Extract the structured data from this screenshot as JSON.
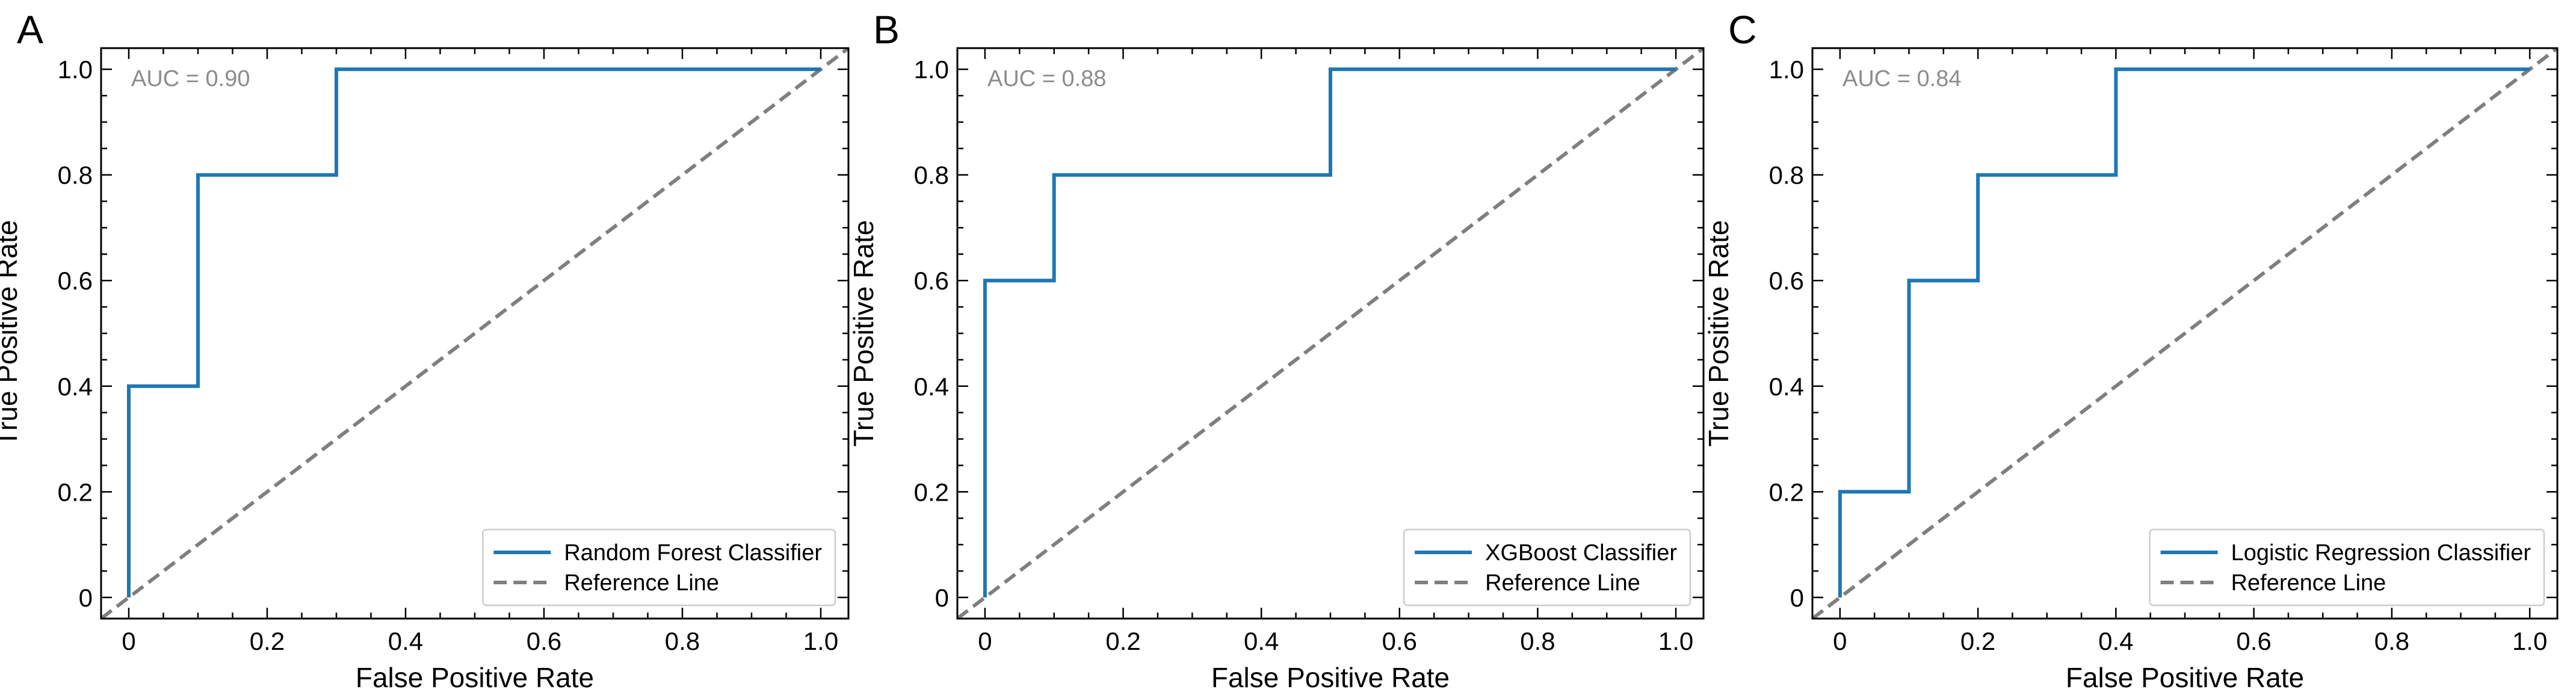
{
  "chart_data": [
    {
      "panel": "A",
      "type": "line",
      "xlabel": "False Positive Rate",
      "ylabel": "True Positive Rate",
      "xlim": [
        -0.04,
        1.04
      ],
      "ylim": [
        -0.04,
        1.04
      ],
      "x_ticks": [
        0,
        0.2,
        0.4,
        0.6,
        0.8,
        1.0
      ],
      "x_tick_labels": [
        "0",
        "0.2",
        "0.4",
        "0.6",
        "0.8",
        "1.0"
      ],
      "y_ticks": [
        0,
        0.2,
        0.4,
        0.6,
        0.8,
        1.0
      ],
      "y_tick_labels": [
        "0",
        "0.2",
        "0.4",
        "0.6",
        "0.8",
        "1.0"
      ],
      "annotation": "AUC = 0.90",
      "legend_placement": "lower-right",
      "series": [
        {
          "name": "Random Forest Classifier",
          "color": "#1f77b4",
          "dash": "solid",
          "x": [
            0,
            0,
            0.1,
            0.1,
            0.3,
            0.3,
            1.0
          ],
          "y": [
            0,
            0.4,
            0.4,
            0.8,
            0.8,
            1.0,
            1.0
          ]
        },
        {
          "name": "Reference Line",
          "color": "#7f7f7f",
          "dash": "dashed",
          "x": [
            -0.04,
            1.04
          ],
          "y": [
            -0.04,
            1.04
          ]
        }
      ]
    },
    {
      "panel": "B",
      "type": "line",
      "xlabel": "False Positive Rate",
      "ylabel": "True Positive Rate",
      "xlim": [
        -0.04,
        1.04
      ],
      "ylim": [
        -0.04,
        1.04
      ],
      "x_ticks": [
        0,
        0.2,
        0.4,
        0.6,
        0.8,
        1.0
      ],
      "x_tick_labels": [
        "0",
        "0.2",
        "0.4",
        "0.6",
        "0.8",
        "1.0"
      ],
      "y_ticks": [
        0,
        0.2,
        0.4,
        0.6,
        0.8,
        1.0
      ],
      "y_tick_labels": [
        "0",
        "0.2",
        "0.4",
        "0.6",
        "0.8",
        "1.0"
      ],
      "annotation": "AUC = 0.88",
      "legend_placement": "lower-right",
      "series": [
        {
          "name": "XGBoost Classifier",
          "color": "#1f77b4",
          "dash": "solid",
          "x": [
            0,
            0,
            0.1,
            0.1,
            0.5,
            0.5,
            1.0
          ],
          "y": [
            0,
            0.6,
            0.6,
            0.8,
            0.8,
            1.0,
            1.0
          ]
        },
        {
          "name": "Reference Line",
          "color": "#7f7f7f",
          "dash": "dashed",
          "x": [
            -0.04,
            1.04
          ],
          "y": [
            -0.04,
            1.04
          ]
        }
      ]
    },
    {
      "panel": "C",
      "type": "line",
      "xlabel": "False Positive Rate",
      "ylabel": "True Positive Rate",
      "xlim": [
        -0.04,
        1.04
      ],
      "ylim": [
        -0.04,
        1.04
      ],
      "x_ticks": [
        0,
        0.2,
        0.4,
        0.6,
        0.8,
        1.0
      ],
      "x_tick_labels": [
        "0",
        "0.2",
        "0.4",
        "0.6",
        "0.8",
        "1.0"
      ],
      "y_ticks": [
        0,
        0.2,
        0.4,
        0.6,
        0.8,
        1.0
      ],
      "y_tick_labels": [
        "0",
        "0.2",
        "0.4",
        "0.6",
        "0.8",
        "1.0"
      ],
      "annotation": "AUC = 0.84",
      "legend_placement": "lower-right",
      "series": [
        {
          "name": "Logistic Regression Classifier",
          "color": "#1f77b4",
          "dash": "solid",
          "x": [
            0,
            0,
            0.1,
            0.1,
            0.2,
            0.2,
            0.4,
            0.4,
            1.0
          ],
          "y": [
            0,
            0.2,
            0.2,
            0.6,
            0.6,
            0.8,
            0.8,
            1.0,
            1.0
          ]
        },
        {
          "name": "Reference Line",
          "color": "#7f7f7f",
          "dash": "dashed",
          "x": [
            -0.04,
            1.04
          ],
          "y": [
            -0.04,
            1.04
          ]
        }
      ]
    }
  ]
}
